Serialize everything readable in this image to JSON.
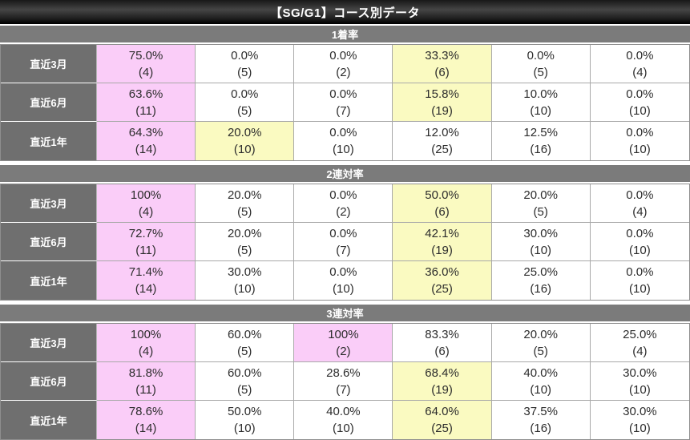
{
  "title": "【SG/G1】コース別データ",
  "colors": {
    "pink": "#facdf8",
    "yellow": "#fafac1",
    "section_bar": "#7b7b7b",
    "row_header": "#6f6f6f",
    "title_bar": "#000000"
  },
  "row_labels": [
    "直近3月",
    "直近6月",
    "直近1年"
  ],
  "sections": [
    {
      "header": "1着率",
      "rows": [
        {
          "label": "直近3月",
          "cells": [
            {
              "rate": "75.0%",
              "count": "(4)",
              "hl": "pink"
            },
            {
              "rate": "0.0%",
              "count": "(5)",
              "hl": ""
            },
            {
              "rate": "0.0%",
              "count": "(2)",
              "hl": ""
            },
            {
              "rate": "33.3%",
              "count": "(6)",
              "hl": "yellow"
            },
            {
              "rate": "0.0%",
              "count": "(5)",
              "hl": ""
            },
            {
              "rate": "0.0%",
              "count": "(4)",
              "hl": ""
            }
          ]
        },
        {
          "label": "直近6月",
          "cells": [
            {
              "rate": "63.6%",
              "count": "(11)",
              "hl": "pink"
            },
            {
              "rate": "0.0%",
              "count": "(5)",
              "hl": ""
            },
            {
              "rate": "0.0%",
              "count": "(7)",
              "hl": ""
            },
            {
              "rate": "15.8%",
              "count": "(19)",
              "hl": "yellow"
            },
            {
              "rate": "10.0%",
              "count": "(10)",
              "hl": ""
            },
            {
              "rate": "0.0%",
              "count": "(10)",
              "hl": ""
            }
          ]
        },
        {
          "label": "直近1年",
          "cells": [
            {
              "rate": "64.3%",
              "count": "(14)",
              "hl": "pink"
            },
            {
              "rate": "20.0%",
              "count": "(10)",
              "hl": "yellow"
            },
            {
              "rate": "0.0%",
              "count": "(10)",
              "hl": ""
            },
            {
              "rate": "12.0%",
              "count": "(25)",
              "hl": ""
            },
            {
              "rate": "12.5%",
              "count": "(16)",
              "hl": ""
            },
            {
              "rate": "0.0%",
              "count": "(10)",
              "hl": ""
            }
          ]
        }
      ]
    },
    {
      "header": "2連対率",
      "rows": [
        {
          "label": "直近3月",
          "cells": [
            {
              "rate": "100%",
              "count": "(4)",
              "hl": "pink"
            },
            {
              "rate": "20.0%",
              "count": "(5)",
              "hl": ""
            },
            {
              "rate": "0.0%",
              "count": "(2)",
              "hl": ""
            },
            {
              "rate": "50.0%",
              "count": "(6)",
              "hl": "yellow"
            },
            {
              "rate": "20.0%",
              "count": "(5)",
              "hl": ""
            },
            {
              "rate": "0.0%",
              "count": "(4)",
              "hl": ""
            }
          ]
        },
        {
          "label": "直近6月",
          "cells": [
            {
              "rate": "72.7%",
              "count": "(11)",
              "hl": "pink"
            },
            {
              "rate": "20.0%",
              "count": "(5)",
              "hl": ""
            },
            {
              "rate": "0.0%",
              "count": "(7)",
              "hl": ""
            },
            {
              "rate": "42.1%",
              "count": "(19)",
              "hl": "yellow"
            },
            {
              "rate": "30.0%",
              "count": "(10)",
              "hl": ""
            },
            {
              "rate": "0.0%",
              "count": "(10)",
              "hl": ""
            }
          ]
        },
        {
          "label": "直近1年",
          "cells": [
            {
              "rate": "71.4%",
              "count": "(14)",
              "hl": "pink"
            },
            {
              "rate": "30.0%",
              "count": "(10)",
              "hl": ""
            },
            {
              "rate": "0.0%",
              "count": "(10)",
              "hl": ""
            },
            {
              "rate": "36.0%",
              "count": "(25)",
              "hl": "yellow"
            },
            {
              "rate": "25.0%",
              "count": "(16)",
              "hl": ""
            },
            {
              "rate": "0.0%",
              "count": "(10)",
              "hl": ""
            }
          ]
        }
      ]
    },
    {
      "header": "3連対率",
      "rows": [
        {
          "label": "直近3月",
          "cells": [
            {
              "rate": "100%",
              "count": "(4)",
              "hl": "pink"
            },
            {
              "rate": "60.0%",
              "count": "(5)",
              "hl": ""
            },
            {
              "rate": "100%",
              "count": "(2)",
              "hl": "pink"
            },
            {
              "rate": "83.3%",
              "count": "(6)",
              "hl": ""
            },
            {
              "rate": "20.0%",
              "count": "(5)",
              "hl": ""
            },
            {
              "rate": "25.0%",
              "count": "(4)",
              "hl": ""
            }
          ]
        },
        {
          "label": "直近6月",
          "cells": [
            {
              "rate": "81.8%",
              "count": "(11)",
              "hl": "pink"
            },
            {
              "rate": "60.0%",
              "count": "(5)",
              "hl": ""
            },
            {
              "rate": "28.6%",
              "count": "(7)",
              "hl": ""
            },
            {
              "rate": "68.4%",
              "count": "(19)",
              "hl": "yellow"
            },
            {
              "rate": "40.0%",
              "count": "(10)",
              "hl": ""
            },
            {
              "rate": "30.0%",
              "count": "(10)",
              "hl": ""
            }
          ]
        },
        {
          "label": "直近1年",
          "cells": [
            {
              "rate": "78.6%",
              "count": "(14)",
              "hl": "pink"
            },
            {
              "rate": "50.0%",
              "count": "(10)",
              "hl": ""
            },
            {
              "rate": "40.0%",
              "count": "(10)",
              "hl": ""
            },
            {
              "rate": "64.0%",
              "count": "(25)",
              "hl": "yellow"
            },
            {
              "rate": "37.5%",
              "count": "(16)",
              "hl": ""
            },
            {
              "rate": "30.0%",
              "count": "(10)",
              "hl": ""
            }
          ]
        }
      ]
    }
  ]
}
